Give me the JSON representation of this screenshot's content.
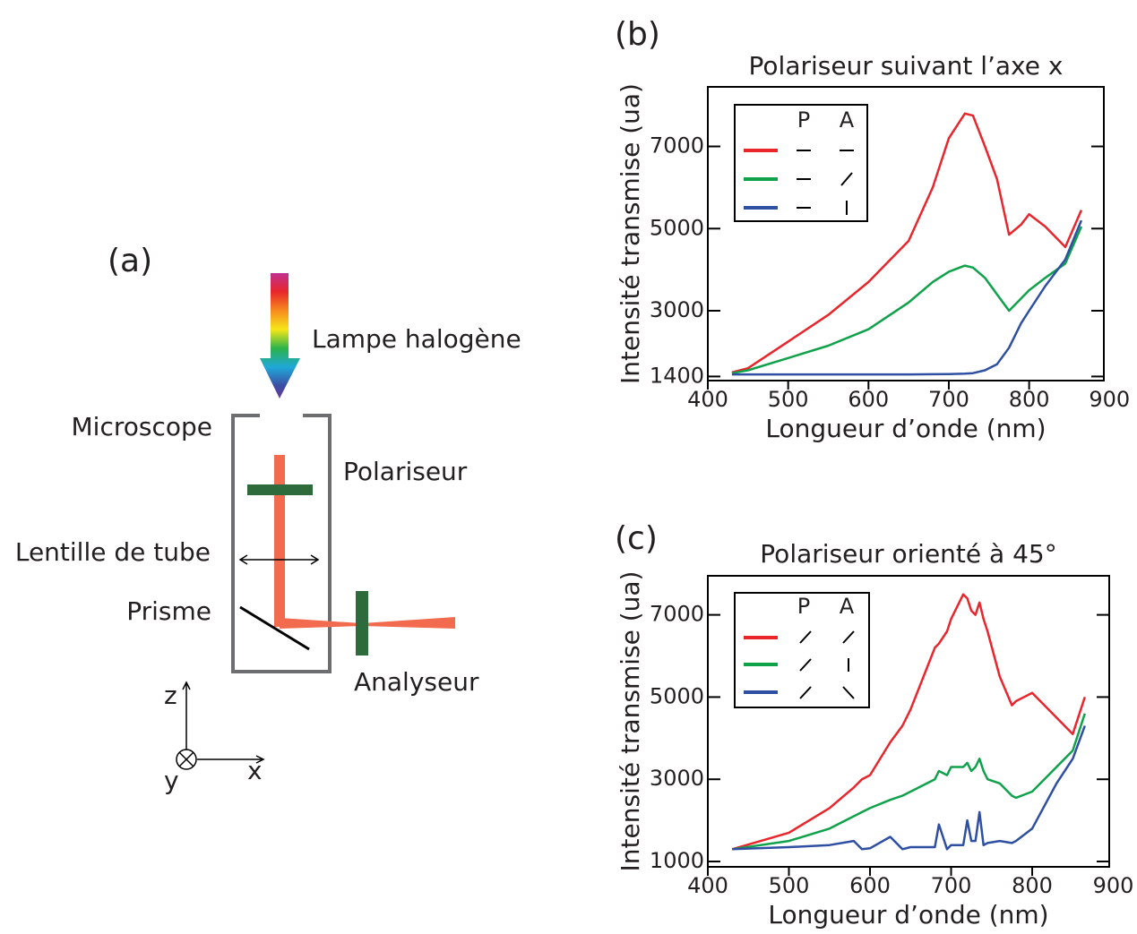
{
  "diagram": {
    "label": "(a)",
    "source": "Lampe halogène",
    "microscope": "Microscope",
    "polarizer": "Polariseur",
    "lens": "Lentille de tube",
    "prism": "Prisme",
    "analyzer": "Analyseur",
    "axes": {
      "z": "z",
      "y": "y",
      "x": "x"
    }
  },
  "chart_data": [
    {
      "type": "line",
      "label": "(b)",
      "title": "Polariseur suivant l’axe x",
      "x_label": "Longueur d’onde (nm)",
      "y_label": "Intensité transmise (ua)",
      "legend_headers": [
        "P",
        "A"
      ],
      "xlim": [
        400,
        893
      ],
      "xticks": [
        400,
        500,
        600,
        700,
        800,
        900
      ],
      "ylim": [
        1300,
        8450
      ],
      "yticks": [
        1400,
        3000,
        5000,
        7000
      ],
      "x": [
        430,
        450,
        500,
        550,
        600,
        650,
        680,
        700,
        720,
        730,
        745,
        760,
        775,
        790,
        800,
        820,
        845,
        865
      ],
      "series": [
        {
          "color": "#e8262b",
          "values": [
            1500,
            1600,
            2250,
            2900,
            3700,
            4700,
            6000,
            7200,
            7800,
            7750,
            7000,
            6200,
            4850,
            5100,
            5350,
            5050,
            4550,
            5450
          ]
        },
        {
          "color": "#10a24b",
          "values": [
            1480,
            1550,
            1850,
            2150,
            2550,
            3200,
            3700,
            3950,
            4100,
            4050,
            3800,
            3400,
            3000,
            3300,
            3500,
            3800,
            4150,
            5050
          ]
        },
        {
          "color": "#2e4fa2",
          "values": [
            1450,
            1450,
            1450,
            1450,
            1450,
            1450,
            1455,
            1460,
            1470,
            1480,
            1550,
            1700,
            2100,
            2700,
            3000,
            3600,
            4250,
            5200
          ]
        }
      ]
    },
    {
      "type": "line",
      "label": "(c)",
      "title": "Polariseur orienté à 45°",
      "x_label": "Longueur d’onde (nm)",
      "y_label": "Intensité transmise (ua)",
      "legend_headers": [
        "P",
        "A"
      ],
      "xlim": [
        400,
        895
      ],
      "xticks": [
        400,
        500,
        600,
        700,
        800,
        900
      ],
      "ylim": [
        870,
        7950
      ],
      "yticks": [
        1000,
        3000,
        5000,
        7000
      ],
      "x": [
        430,
        500,
        550,
        580,
        590,
        600,
        625,
        640,
        650,
        680,
        685,
        695,
        700,
        715,
        720,
        725,
        730,
        735,
        740,
        745,
        760,
        775,
        780,
        800,
        830,
        850,
        865
      ],
      "series": [
        {
          "color": "#e8262b",
          "values": [
            1300,
            1700,
            2300,
            2800,
            3000,
            3100,
            3900,
            4300,
            4700,
            6200,
            6300,
            6600,
            6900,
            7500,
            7400,
            7100,
            7000,
            7300,
            6900,
            6600,
            5500,
            4800,
            4900,
            5100,
            4500,
            4100,
            5000
          ]
        },
        {
          "color": "#10a24b",
          "values": [
            1300,
            1500,
            1800,
            2100,
            2200,
            2300,
            2500,
            2600,
            2700,
            3000,
            3200,
            3100,
            3300,
            3300,
            3400,
            3200,
            3300,
            3500,
            3200,
            3000,
            2900,
            2600,
            2550,
            2700,
            3300,
            3700,
            4600
          ]
        },
        {
          "color": "#2e4fa2",
          "values": [
            1300,
            1350,
            1400,
            1500,
            1300,
            1320,
            1600,
            1300,
            1350,
            1350,
            1900,
            1300,
            1400,
            1400,
            2000,
            1500,
            1500,
            2200,
            1400,
            1450,
            1500,
            1450,
            1500,
            1800,
            2900,
            3500,
            4300
          ]
        }
      ]
    }
  ]
}
